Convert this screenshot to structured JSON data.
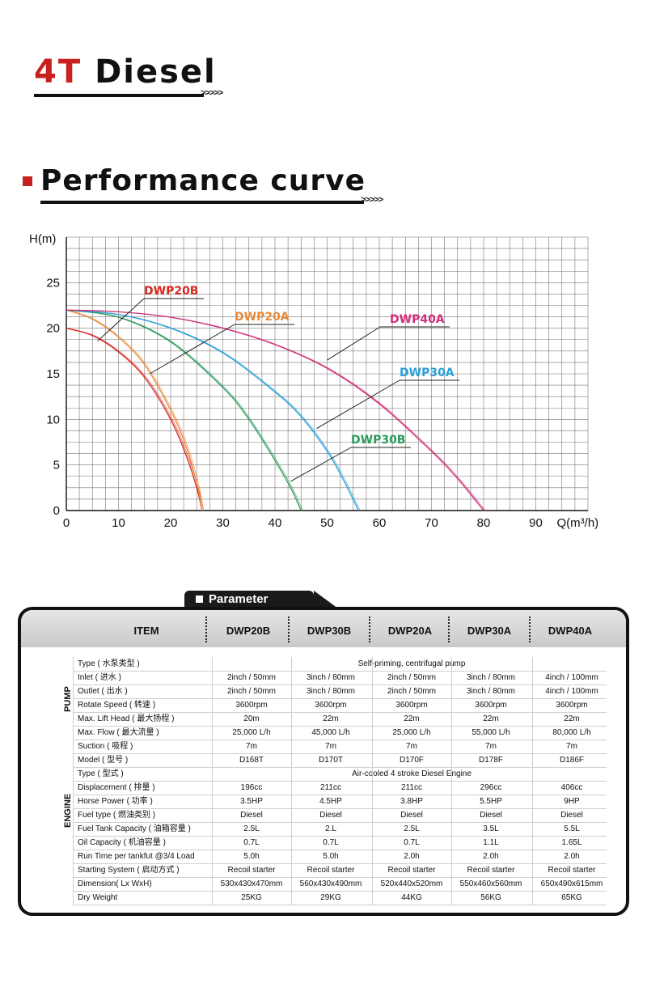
{
  "heading1": {
    "accent": "4T",
    "rest": "Diesel",
    "arrows": ">>>>>"
  },
  "heading2": {
    "title": "Performance curve",
    "arrows": ">>>>>"
  },
  "chart_data": {
    "type": "line",
    "ylabel": "H(m)",
    "xlabel": "Q(m³/h)",
    "xlim": [
      0,
      100
    ],
    "ylim": [
      0,
      30
    ],
    "xticks": [
      "0",
      "10",
      "20",
      "30",
      "40",
      "50",
      "60",
      "70",
      "80",
      "90"
    ],
    "yticks": [
      "0",
      "5",
      "10",
      "15",
      "20",
      "25"
    ],
    "grid": true,
    "series": [
      {
        "name": "DWP20B",
        "color": "#d8261e",
        "x": [
          0,
          5,
          10,
          15,
          20,
          23,
          25,
          26
        ],
        "y": [
          20,
          19.2,
          17.4,
          14.6,
          10,
          6,
          2.5,
          0
        ]
      },
      {
        "name": "DWP20A",
        "color": "#e8893a",
        "x": [
          0,
          5,
          10,
          15,
          20,
          23,
          25,
          26
        ],
        "y": [
          22,
          21,
          19,
          16,
          11,
          7,
          3,
          0
        ]
      },
      {
        "name": "DWP30B",
        "color": "#2a9a5a",
        "x": [
          0,
          10,
          20,
          30,
          35,
          40,
          43,
          45
        ],
        "y": [
          22,
          21.2,
          18.5,
          13.5,
          10,
          5.5,
          2.5,
          0
        ]
      },
      {
        "name": "DWP30A",
        "color": "#2aa0d8",
        "x": [
          0,
          10,
          20,
          30,
          40,
          45,
          50,
          53,
          56
        ],
        "y": [
          22,
          21.5,
          20,
          17.3,
          13,
          10.3,
          6.5,
          3.5,
          0
        ]
      },
      {
        "name": "DWP40A",
        "color": "#d0307a",
        "x": [
          0,
          10,
          20,
          30,
          40,
          50,
          60,
          70,
          75,
          80
        ],
        "y": [
          22,
          21.8,
          21.2,
          20,
          18.2,
          15.6,
          11.7,
          6.5,
          3.5,
          0
        ]
      }
    ],
    "annotations": [
      {
        "label": "DWP20B",
        "color": "#d8261e"
      },
      {
        "label": "DWP20A",
        "color": "#e8893a"
      },
      {
        "label": "DWP40A",
        "color": "#d0307a"
      },
      {
        "label": "DWP30A",
        "color": "#2aa0d8"
      },
      {
        "label": "DWP30B",
        "color": "#2a9a5a"
      }
    ]
  },
  "parameter": {
    "tab": "Parameter",
    "header": {
      "item": "ITEM",
      "models": [
        "DWP20B",
        "DWP30B",
        "DWP20A",
        "DWP30A",
        "DWP40A"
      ]
    },
    "groups": {
      "pump": "PUMP",
      "engine": "ENGINE"
    },
    "rows": [
      {
        "label": "Type ( 水泵类型 )",
        "span": "Self-priming, centrifugal pump"
      },
      {
        "label": "Inlet ( 进水 )",
        "vals": [
          "2inch / 50mm",
          "3inch / 80mm",
          "2inch / 50mm",
          "3inch / 80mm",
          "4inch / 100mm"
        ]
      },
      {
        "label": "Outlet ( 出水 )",
        "vals": [
          "2inch / 50mm",
          "3inch / 80mm",
          "2inch / 50mm",
          "3inch / 80mm",
          "4inch / 100mm"
        ]
      },
      {
        "label": "Rotate Speed ( 转速 )",
        "vals": [
          "3600rpm",
          "3600rpm",
          "3600rpm",
          "3600rpm",
          "3600rpm"
        ]
      },
      {
        "label": "Max. Lift Head ( 最大扬程 )",
        "vals": [
          "20m",
          "22m",
          "22m",
          "22m",
          "22m"
        ]
      },
      {
        "label": "Max. Flow ( 最大流量 )",
        "vals": [
          "25,000 L/h",
          "45,000 L/h",
          "25,000 L/h",
          "55,000 L/h",
          "80,000 L/h"
        ]
      },
      {
        "label": "Suction ( 吸程 )",
        "vals": [
          "7m",
          "7m",
          "7m",
          "7m",
          "7m"
        ]
      },
      {
        "label": "Model ( 型号 )",
        "vals": [
          "D168T",
          "D170T",
          "D170F",
          "D178F",
          "D186F"
        ]
      },
      {
        "label": "Type ( 型式 )",
        "span": "Air-cooled 4 stroke Diesel Engine"
      },
      {
        "label": "Displacement ( 排量 )",
        "vals": [
          "196cc",
          "211cc",
          "211cc",
          "296cc",
          "406cc"
        ]
      },
      {
        "label": "Horse Power ( 功率 )",
        "vals": [
          "3.5HP",
          "4.5HP",
          "3.8HP",
          "5.5HP",
          "9HP"
        ]
      },
      {
        "label": "Fuel type ( 燃油类别 )",
        "vals": [
          "Diesel",
          "Diesel",
          "Diesel",
          "Diesel",
          "Diesel"
        ]
      },
      {
        "label": "Fuel Tank Capacity ( 油箱容量 )",
        "vals": [
          "2.5L",
          "2.L",
          "2.5L",
          "3.5L",
          "5.5L"
        ]
      },
      {
        "label": "Oil Capacity ( 机油容量 )",
        "vals": [
          "0.7L",
          "0.7L",
          "0.7L",
          "1.1L",
          "1.65L"
        ]
      },
      {
        "label": "Run Time per tankfut @3/4 Load",
        "vals": [
          "5.0h",
          "5.0h",
          "2.0h",
          "2.0h",
          "2.0h"
        ]
      },
      {
        "label": "Starting System ( 启动方式 )",
        "vals": [
          "Recoil starter",
          "Recoil starter",
          "Recoil starter",
          "Recoil starter",
          "Recoil starter"
        ]
      },
      {
        "label": "Dimension( Lx WxH)",
        "vals": [
          "530x430x470mm",
          "560x430x490mm",
          "520x440x520mm",
          "550x460x560mm",
          "650x490x615mm"
        ]
      },
      {
        "label": "Dry Weight",
        "vals": [
          "25KG",
          "29KG",
          "44KG",
          "56KG",
          "65KG"
        ]
      }
    ]
  }
}
